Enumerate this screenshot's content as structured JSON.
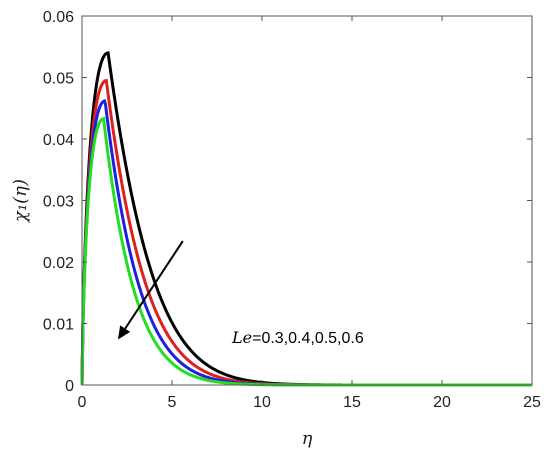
{
  "chart_data": {
    "type": "line",
    "xlabel": "η",
    "ylabel": "χ₁(η)",
    "xlim": [
      0,
      25
    ],
    "ylim": [
      0,
      0.06
    ],
    "xticks": [
      0,
      5,
      10,
      15,
      20,
      25
    ],
    "yticks": [
      0,
      0.01,
      0.02,
      0.03,
      0.04,
      0.05,
      0.06
    ],
    "ytick_labels": [
      "0",
      "0.01",
      "0.02",
      "0.03",
      "0.04",
      "0.05",
      "0.06"
    ],
    "grid": false,
    "annotation": {
      "symbol": "Le",
      "text": "=0.3,0.4,0.5,0.6",
      "arrow_from": [
        5.6,
        0.0234
      ],
      "arrow_to": [
        2.0,
        0.0074
      ]
    },
    "series": [
      {
        "color": "#000000",
        "peak": 0.054,
        "peak_x": 1.45,
        "decay": 0.4
      },
      {
        "color": "#e0201b",
        "peak": 0.0495,
        "peak_x": 1.35,
        "decay": 0.46
      },
      {
        "color": "#1f1fe0",
        "peak": 0.0462,
        "peak_x": 1.28,
        "decay": 0.52
      },
      {
        "color": "#22dd22",
        "peak": 0.0433,
        "peak_x": 1.2,
        "decay": 0.58
      }
    ]
  }
}
